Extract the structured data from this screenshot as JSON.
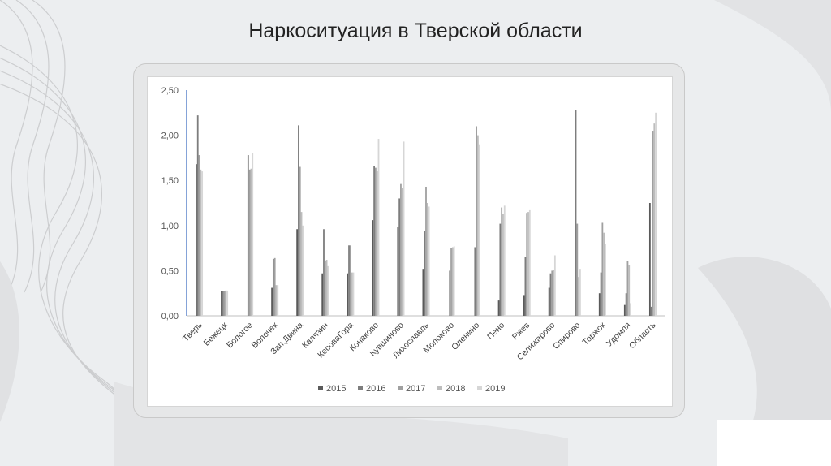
{
  "slide": {
    "title": "Наркоситуация в Тверской области"
  },
  "colors": {
    "2015": "#5a5a5a",
    "2016": "#7d7d7d",
    "2017": "#a0a0a0",
    "2018": "#bdbdbd",
    "2019": "#d6d6d6",
    "y_axis": "#4472c4"
  },
  "chart_data": {
    "type": "bar",
    "title": "",
    "xlabel": "",
    "ylabel": "",
    "ylim": [
      0,
      2.5
    ],
    "yticks": [
      "0,00",
      "0,50",
      "1,00",
      "1,50",
      "2,00",
      "2,50"
    ],
    "grid": false,
    "legend_position": "bottom",
    "categories": [
      "Тверь",
      "Бежецк",
      "Бологое",
      "Волочек",
      "Зап.Двина",
      "Калязин",
      "КесоваГора",
      "Конаково",
      "Кувшиново",
      "Лихославль",
      "Молоково",
      "Оленино",
      "Пено",
      "Ржев",
      "Селижарово",
      "Спирово",
      "Торжок",
      "Удомля",
      "Область"
    ],
    "series": [
      {
        "name": "2015",
        "values": [
          1.68,
          0.27,
          0.0,
          0.31,
          0.96,
          0.47,
          0.47,
          1.06,
          0.98,
          0.52,
          0.0,
          0.0,
          0.17,
          0.23,
          0.31,
          0.0,
          0.25,
          0.12,
          1.25
        ]
      },
      {
        "name": "2016",
        "values": [
          2.22,
          0.27,
          1.78,
          0.63,
          2.11,
          0.96,
          0.78,
          1.66,
          1.3,
          0.94,
          0.5,
          0.76,
          1.02,
          0.65,
          0.47,
          2.28,
          0.48,
          0.25,
          0.1
        ]
      },
      {
        "name": "2017",
        "values": [
          1.78,
          0.27,
          1.62,
          0.64,
          1.65,
          0.61,
          0.78,
          1.64,
          1.46,
          1.43,
          0.75,
          2.1,
          1.2,
          1.14,
          0.5,
          1.02,
          1.03,
          0.61,
          2.05
        ]
      },
      {
        "name": "2018",
        "values": [
          1.62,
          0.28,
          1.63,
          0.34,
          1.15,
          0.62,
          0.48,
          1.6,
          1.42,
          1.25,
          0.76,
          2.0,
          1.13,
          1.15,
          0.51,
          0.43,
          0.92,
          0.56,
          2.13
        ]
      },
      {
        "name": "2019",
        "values": [
          1.6,
          0.28,
          1.8,
          0.34,
          1.0,
          0.55,
          0.48,
          1.96,
          1.93,
          1.21,
          0.77,
          1.9,
          1.22,
          1.17,
          0.67,
          0.52,
          0.8,
          0.14,
          2.25
        ]
      }
    ]
  }
}
